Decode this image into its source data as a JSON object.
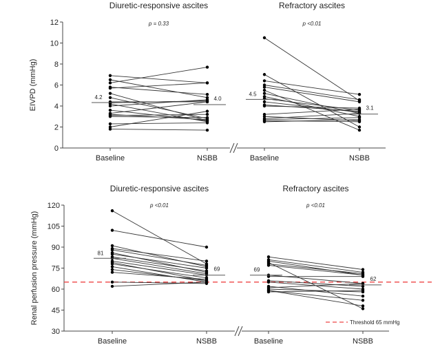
{
  "chart_data": [
    {
      "type": "line",
      "ylabel": "EIVPD (mmHg)",
      "ylim": [
        0,
        12
      ],
      "yticks": [
        0,
        2,
        4,
        6,
        8,
        10,
        12
      ],
      "categories": [
        "Baseline",
        "NSBB"
      ],
      "panels": [
        {
          "title": "Diuretic-responsive ascites",
          "p_value": "p = 0.33",
          "means": [
            4.2,
            4.0
          ],
          "mean_labels": [
            "4.2",
            "4.0"
          ],
          "pairs": [
            [
              6.9,
              6.2
            ],
            [
              6.5,
              4.8
            ],
            [
              6.2,
              7.7
            ],
            [
              5.8,
              5.1
            ],
            [
              5.7,
              6.2
            ],
            [
              5.2,
              2.6
            ],
            [
              4.8,
              2.8
            ],
            [
              4.4,
              4.4
            ],
            [
              4.3,
              4.5
            ],
            [
              4.2,
              2.5
            ],
            [
              4.0,
              4.6
            ],
            [
              3.6,
              2.6
            ],
            [
              3.3,
              4.4
            ],
            [
              3.2,
              2.7
            ],
            [
              3.1,
              3.2
            ],
            [
              3.0,
              2.9
            ],
            [
              2.3,
              2.4
            ],
            [
              2.0,
              3.5
            ],
            [
              1.8,
              1.7
            ]
          ]
        },
        {
          "title": "Refractory ascites",
          "p_value": "p <0.01",
          "means": [
            4.5,
            3.1
          ],
          "mean_labels": [
            "4.5",
            "3.1"
          ],
          "pairs": [
            [
              10.5,
              4.5
            ],
            [
              7.0,
              2.0
            ],
            [
              6.4,
              5.1
            ],
            [
              6.0,
              4.6
            ],
            [
              5.8,
              4.4
            ],
            [
              5.5,
              1.7
            ],
            [
              5.2,
              3.3
            ],
            [
              4.9,
              3.0
            ],
            [
              4.7,
              3.6
            ],
            [
              4.4,
              3.4
            ],
            [
              4.1,
              3.5
            ],
            [
              4.0,
              3.8
            ],
            [
              3.2,
              3.7
            ],
            [
              3.0,
              2.6
            ],
            [
              2.8,
              3.3
            ],
            [
              2.7,
              2.9
            ],
            [
              2.6,
              2.5
            ],
            [
              2.5,
              2.7
            ]
          ]
        }
      ]
    },
    {
      "type": "line",
      "ylabel": "Renal perfusion pressure (mmHg)",
      "ylim": [
        30,
        120
      ],
      "yticks": [
        30,
        45,
        60,
        75,
        90,
        105,
        120
      ],
      "categories": [
        "Baseline",
        "NSBB"
      ],
      "threshold": {
        "value": 65,
        "label": "Threshold 65 mmHg",
        "color": "#ee4444"
      },
      "panels": [
        {
          "title": "Diuretic-responsive ascites",
          "p_value": "p <0.01",
          "means": [
            81,
            69
          ],
          "mean_labels": [
            "81",
            "69"
          ],
          "pairs": [
            [
              116,
              78
            ],
            [
              102,
              90
            ],
            [
              91,
              76
            ],
            [
              89,
              80
            ],
            [
              88,
              77
            ],
            [
              86,
              72
            ],
            [
              85,
              75
            ],
            [
              83,
              73
            ],
            [
              82,
              71
            ],
            [
              80,
              70
            ],
            [
              79,
              66
            ],
            [
              78,
              68
            ],
            [
              76,
              65
            ],
            [
              74,
              66
            ],
            [
              72,
              67
            ],
            [
              65,
              64
            ],
            [
              62,
              65
            ]
          ]
        },
        {
          "title": "Refractory ascites",
          "p_value": "p <0.01",
          "means": [
            69,
            62
          ],
          "mean_labels": [
            "69",
            "62"
          ],
          "pairs": [
            [
              83,
              74
            ],
            [
              81,
              72
            ],
            [
              80,
              70
            ],
            [
              79,
              46
            ],
            [
              78,
              71
            ],
            [
              77,
              70
            ],
            [
              70,
              64
            ],
            [
              69,
              69
            ],
            [
              66,
              62
            ],
            [
              65,
              60
            ],
            [
              62,
              55
            ],
            [
              61,
              64
            ],
            [
              60,
              58
            ],
            [
              59,
              52
            ],
            [
              59,
              48
            ],
            [
              58,
              59
            ]
          ]
        }
      ]
    }
  ]
}
